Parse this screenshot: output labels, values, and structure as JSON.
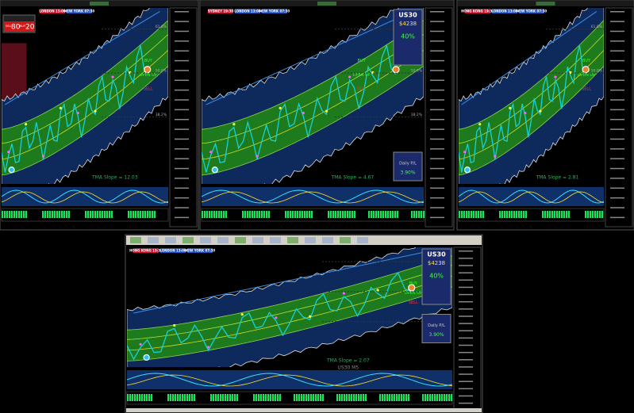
{
  "panels": [
    {
      "sessions": [
        "LONDON 13:00",
        "NEW YORK 07:30"
      ],
      "ticket": {
        "sell_label": "SELL",
        "sell": "80",
        "buy_label": "BUY",
        "buy": "20"
      },
      "signals": [
        "BUY",
        "OPEN UP",
        "SELL"
      ],
      "levels": [
        "61.8%",
        "50.0%",
        "38.2%"
      ],
      "slope": "TMA Slope = 12.03"
    },
    {
      "sessions": [
        "SYDNEY 19:30",
        "LONDON 13:00",
        "NEW YORK 07:30"
      ],
      "info": {
        "symbol": "US30",
        "price": "$4238",
        "pct": "40%",
        "pl_label": "Daily P/L",
        "pl": "3.90%"
      },
      "signals": [
        "BUY",
        "OPEN UP",
        "SELL"
      ],
      "levels": [
        "61.8%",
        "50.0%",
        "38.2%"
      ],
      "slope": "TMA Slope = 4.67"
    },
    {
      "sessions": [
        "HONG KONG 19:30",
        "LONDON 13:00",
        "NEW YORK 07:30"
      ],
      "signals": [
        "BUY",
        "OPEN UP",
        "SELL"
      ],
      "levels": [
        "61.8%",
        "50.0%"
      ],
      "slope": "TMA Slope = 2.81"
    },
    {
      "sessions": [
        "HONG KONG 19:30",
        "LONDON 13:00",
        "NEW YORK 07:30"
      ],
      "info": {
        "symbol": "US30",
        "price": "$4238",
        "pct": "40%",
        "pl_label": "Daily P/L",
        "pl": "3.90%"
      },
      "signals": [
        "BUY",
        "OPEN UP",
        "SELL"
      ],
      "levels": [
        "61.8%",
        "50.0%",
        "38.2%"
      ],
      "slope": "TMA Slope = 2.07",
      "symbol_label": "US30 M5"
    }
  ]
}
